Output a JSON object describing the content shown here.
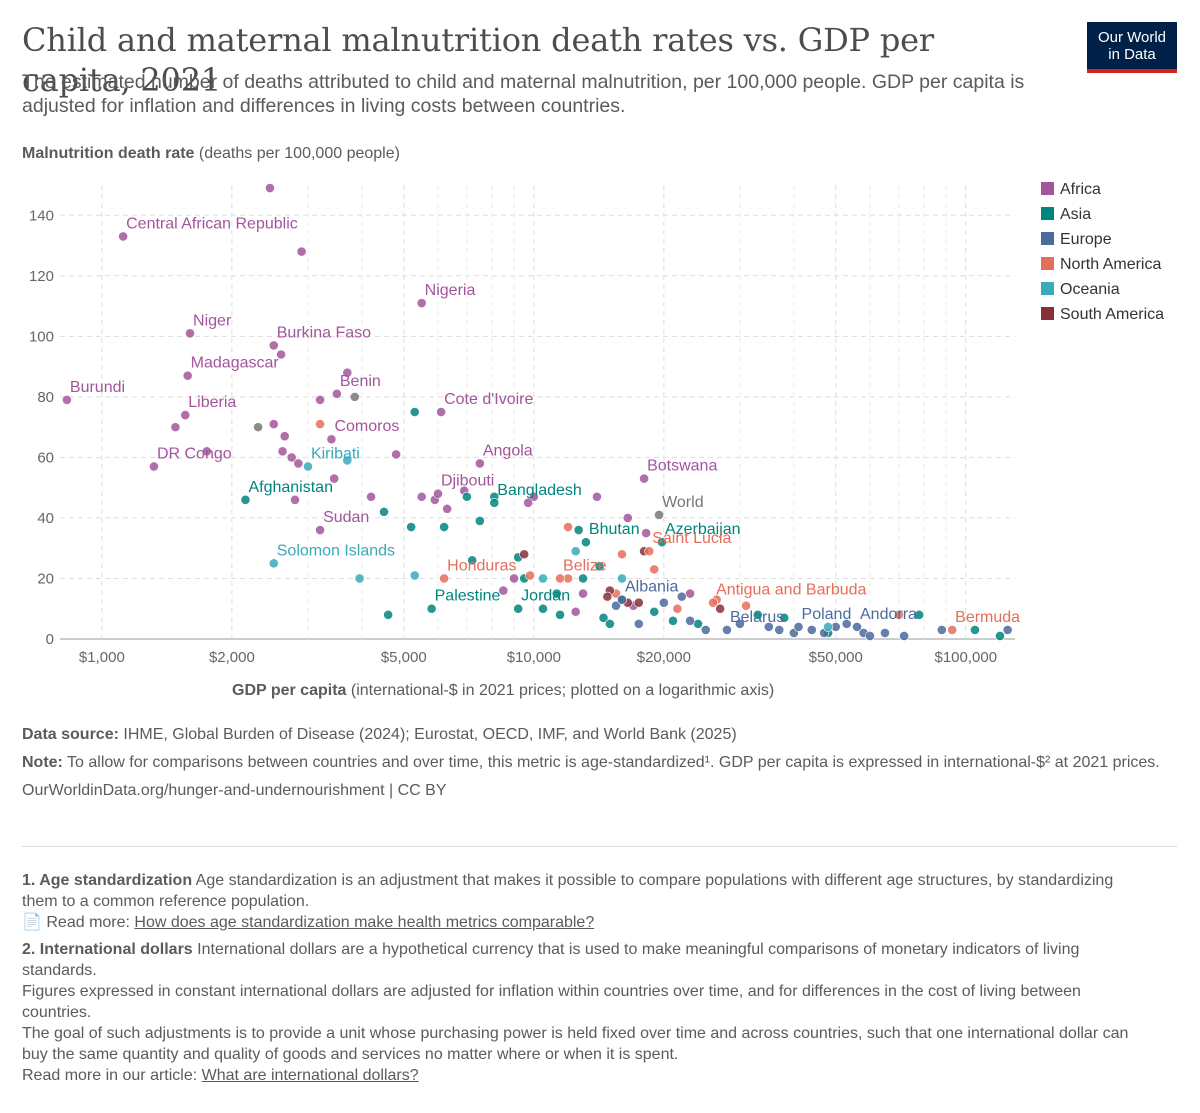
{
  "header": {
    "title": "Child and maternal malnutrition death rates vs. GDP per capita, 2021",
    "subtitle": "The estimated number of deaths attributed to child and maternal malnutrition, per 100,000 people. GDP per capita is adjusted for inflation and differences in living costs between countries.",
    "logo_line1": "Our World",
    "logo_line2": "in Data"
  },
  "colors": {
    "Africa": "#a2559c",
    "Asia": "#00847e",
    "Europe": "#4c6a9c",
    "North America": "#e56e5a",
    "Oceania": "#38aaba",
    "South America": "#883039",
    "World": "#777777"
  },
  "chart_data": {
    "type": "scatter",
    "title": "Child and maternal malnutrition death rates vs. GDP per capita, 2021",
    "ylabel_bold": "Malnutrition death rate",
    "ylabel_rest": " (deaths per 100,000 people)",
    "xlabel_bold": "GDP per capita",
    "xlabel_rest": " (international-$ in 2021 prices; plotted on a logarithmic axis)",
    "x_scale": "log",
    "xlim": [
      800,
      130000
    ],
    "ylim": [
      0,
      150
    ],
    "grid": true,
    "legend_position": "right",
    "x_ticks": [
      {
        "value": 1000,
        "label": "$1,000"
      },
      {
        "value": 2000,
        "label": "$2,000"
      },
      {
        "value": 5000,
        "label": "$5,000"
      },
      {
        "value": 10000,
        "label": "$10,000"
      },
      {
        "value": 20000,
        "label": "$20,000"
      },
      {
        "value": 50000,
        "label": "$50,000"
      },
      {
        "value": 100000,
        "label": "$100,000"
      }
    ],
    "x_minor_ticks": [
      3000,
      4000,
      6000,
      7000,
      8000,
      9000,
      30000,
      40000,
      60000,
      70000,
      80000,
      90000
    ],
    "y_ticks": [
      0,
      20,
      40,
      60,
      80,
      100,
      120,
      140
    ],
    "legend": [
      "Africa",
      "Asia",
      "Europe",
      "North America",
      "Oceania",
      "South America"
    ],
    "labeled_points": [
      {
        "name": "Central African Republic",
        "region": "Africa",
        "x": 1120,
        "y": 133
      },
      {
        "name": "Nigeria",
        "region": "Africa",
        "x": 5500,
        "y": 111
      },
      {
        "name": "Niger",
        "region": "Africa",
        "x": 1600,
        "y": 101
      },
      {
        "name": "Burkina Faso",
        "region": "Africa",
        "x": 2500,
        "y": 97
      },
      {
        "name": "Madagascar",
        "region": "Africa",
        "x": 1580,
        "y": 87
      },
      {
        "name": "Benin",
        "region": "Africa",
        "x": 3500,
        "y": 81
      },
      {
        "name": "Burundi",
        "region": "Africa",
        "x": 830,
        "y": 79
      },
      {
        "name": "Liberia",
        "region": "Africa",
        "x": 1560,
        "y": 74
      },
      {
        "name": "Cote d'Ivoire",
        "region": "Africa",
        "x": 6100,
        "y": 75
      },
      {
        "name": "Comoros",
        "region": "Africa",
        "x": 3400,
        "y": 66
      },
      {
        "name": "DR Congo",
        "region": "Africa",
        "x": 1320,
        "y": 57
      },
      {
        "name": "Kiribati",
        "region": "Oceania",
        "x": 3000,
        "y": 57
      },
      {
        "name": "Angola",
        "region": "Africa",
        "x": 7500,
        "y": 58
      },
      {
        "name": "Botswana",
        "region": "Africa",
        "x": 18000,
        "y": 53
      },
      {
        "name": "Afghanistan",
        "region": "Asia",
        "x": 2150,
        "y": 46
      },
      {
        "name": "Djibouti",
        "region": "Africa",
        "x": 6000,
        "y": 48
      },
      {
        "name": "Bangladesh",
        "region": "Asia",
        "x": 8100,
        "y": 45
      },
      {
        "name": "World",
        "region": "World",
        "x": 19500,
        "y": 41
      },
      {
        "name": "Sudan",
        "region": "Africa",
        "x": 3200,
        "y": 36
      },
      {
        "name": "Bhutan",
        "region": "Asia",
        "x": 13200,
        "y": 32
      },
      {
        "name": "Azerbaijan",
        "region": "Asia",
        "x": 19800,
        "y": 32
      },
      {
        "name": "Solomon Islands",
        "region": "Oceania",
        "x": 2500,
        "y": 25
      },
      {
        "name": "Saint Lucia",
        "region": "North America",
        "x": 18500,
        "y": 29
      },
      {
        "name": "Belize",
        "region": "North America",
        "x": 11500,
        "y": 20
      },
      {
        "name": "Honduras",
        "region": "North America",
        "x": 6200,
        "y": 20
      },
      {
        "name": "Antigua and Barbuda",
        "region": "North America",
        "x": 26000,
        "y": 12
      },
      {
        "name": "Albania",
        "region": "Europe",
        "x": 16000,
        "y": 13
      },
      {
        "name": "Palestine",
        "region": "Asia",
        "x": 5800,
        "y": 10
      },
      {
        "name": "Jordan",
        "region": "Asia",
        "x": 9200,
        "y": 10
      },
      {
        "name": "Poland",
        "region": "Europe",
        "x": 41000,
        "y": 4
      },
      {
        "name": "Belarus",
        "region": "Europe",
        "x": 28000,
        "y": 3
      },
      {
        "name": "Andorra",
        "region": "Europe",
        "x": 56000,
        "y": 4
      },
      {
        "name": "Bermuda",
        "region": "North America",
        "x": 93000,
        "y": 3
      }
    ],
    "other_points": [
      {
        "region": "Africa",
        "x": 2450,
        "y": 149
      },
      {
        "region": "Africa",
        "x": 2900,
        "y": 128
      },
      {
        "region": "Africa",
        "x": 2600,
        "y": 94
      },
      {
        "region": "Africa",
        "x": 3700,
        "y": 88
      },
      {
        "region": "Africa",
        "x": 3200,
        "y": 79
      },
      {
        "region": "Africa",
        "x": 1480,
        "y": 70
      },
      {
        "region": "Africa",
        "x": 2500,
        "y": 71
      },
      {
        "region": "Africa",
        "x": 2650,
        "y": 67
      },
      {
        "region": "Africa",
        "x": 1750,
        "y": 62
      },
      {
        "region": "Africa",
        "x": 2620,
        "y": 62
      },
      {
        "region": "Africa",
        "x": 2750,
        "y": 60
      },
      {
        "region": "Africa",
        "x": 2850,
        "y": 58
      },
      {
        "region": "Africa",
        "x": 4800,
        "y": 61
      },
      {
        "region": "Africa",
        "x": 3450,
        "y": 53
      },
      {
        "region": "Africa",
        "x": 2800,
        "y": 46
      },
      {
        "region": "Africa",
        "x": 4200,
        "y": 47
      },
      {
        "region": "Africa",
        "x": 5500,
        "y": 47
      },
      {
        "region": "Africa",
        "x": 5900,
        "y": 46
      },
      {
        "region": "Africa",
        "x": 6900,
        "y": 49
      },
      {
        "region": "Africa",
        "x": 10000,
        "y": 47
      },
      {
        "region": "Africa",
        "x": 14000,
        "y": 47
      },
      {
        "region": "Africa",
        "x": 6300,
        "y": 43
      },
      {
        "region": "Africa",
        "x": 9700,
        "y": 45
      },
      {
        "region": "Africa",
        "x": 16500,
        "y": 40
      },
      {
        "region": "Africa",
        "x": 18200,
        "y": 35
      },
      {
        "region": "Africa",
        "x": 9000,
        "y": 20
      },
      {
        "region": "Africa",
        "x": 13000,
        "y": 15
      },
      {
        "region": "Africa",
        "x": 12500,
        "y": 9
      },
      {
        "region": "Africa",
        "x": 17000,
        "y": 11
      },
      {
        "region": "Africa",
        "x": 23000,
        "y": 15
      },
      {
        "region": "Africa",
        "x": 8500,
        "y": 16
      },
      {
        "region": "Asia",
        "x": 5300,
        "y": 75
      },
      {
        "region": "Asia",
        "x": 4500,
        "y": 42
      },
      {
        "region": "Asia",
        "x": 5200,
        "y": 37
      },
      {
        "region": "Asia",
        "x": 6200,
        "y": 37
      },
      {
        "region": "Asia",
        "x": 7500,
        "y": 39
      },
      {
        "region": "Asia",
        "x": 7000,
        "y": 47
      },
      {
        "region": "Asia",
        "x": 8100,
        "y": 47
      },
      {
        "region": "Asia",
        "x": 12700,
        "y": 36
      },
      {
        "region": "Asia",
        "x": 9200,
        "y": 27
      },
      {
        "region": "Asia",
        "x": 14200,
        "y": 24
      },
      {
        "region": "Asia",
        "x": 13000,
        "y": 20
      },
      {
        "region": "Asia",
        "x": 9500,
        "y": 20
      },
      {
        "region": "Asia",
        "x": 11300,
        "y": 15
      },
      {
        "region": "Asia",
        "x": 10500,
        "y": 10
      },
      {
        "region": "Asia",
        "x": 11500,
        "y": 8
      },
      {
        "region": "Asia",
        "x": 14500,
        "y": 7
      },
      {
        "region": "Asia",
        "x": 15000,
        "y": 5
      },
      {
        "region": "Asia",
        "x": 16000,
        "y": 13
      },
      {
        "region": "Asia",
        "x": 19000,
        "y": 9
      },
      {
        "region": "Asia",
        "x": 21000,
        "y": 6
      },
      {
        "region": "Asia",
        "x": 24000,
        "y": 5
      },
      {
        "region": "Asia",
        "x": 33000,
        "y": 8
      },
      {
        "region": "Asia",
        "x": 38000,
        "y": 7
      },
      {
        "region": "Asia",
        "x": 48000,
        "y": 2
      },
      {
        "region": "Asia",
        "x": 78000,
        "y": 8
      },
      {
        "region": "Asia",
        "x": 105000,
        "y": 3
      },
      {
        "region": "Asia",
        "x": 120000,
        "y": 1
      },
      {
        "region": "Asia",
        "x": 4600,
        "y": 8
      },
      {
        "region": "Asia",
        "x": 7200,
        "y": 26
      },
      {
        "region": "Europe",
        "x": 15500,
        "y": 11
      },
      {
        "region": "Europe",
        "x": 17500,
        "y": 5
      },
      {
        "region": "Europe",
        "x": 20000,
        "y": 12
      },
      {
        "region": "Europe",
        "x": 22000,
        "y": 14
      },
      {
        "region": "Europe",
        "x": 23000,
        "y": 6
      },
      {
        "region": "Europe",
        "x": 25000,
        "y": 3
      },
      {
        "region": "Europe",
        "x": 30000,
        "y": 5
      },
      {
        "region": "Europe",
        "x": 35000,
        "y": 4
      },
      {
        "region": "Europe",
        "x": 37000,
        "y": 3
      },
      {
        "region": "Europe",
        "x": 40000,
        "y": 2
      },
      {
        "region": "Europe",
        "x": 44000,
        "y": 3
      },
      {
        "region": "Europe",
        "x": 47000,
        "y": 2
      },
      {
        "region": "Europe",
        "x": 50000,
        "y": 4
      },
      {
        "region": "Europe",
        "x": 53000,
        "y": 5
      },
      {
        "region": "Europe",
        "x": 58000,
        "y": 2
      },
      {
        "region": "Europe",
        "x": 60000,
        "y": 1
      },
      {
        "region": "Europe",
        "x": 65000,
        "y": 2
      },
      {
        "region": "Europe",
        "x": 72000,
        "y": 1
      },
      {
        "region": "Europe",
        "x": 88000,
        "y": 3
      },
      {
        "region": "Europe",
        "x": 125000,
        "y": 3
      },
      {
        "region": "North America",
        "x": 3200,
        "y": 71
      },
      {
        "region": "North America",
        "x": 12000,
        "y": 37
      },
      {
        "region": "North America",
        "x": 16000,
        "y": 28
      },
      {
        "region": "North America",
        "x": 19000,
        "y": 23
      },
      {
        "region": "North America",
        "x": 12000,
        "y": 20
      },
      {
        "region": "North America",
        "x": 9800,
        "y": 21
      },
      {
        "region": "North America",
        "x": 15500,
        "y": 15
      },
      {
        "region": "North America",
        "x": 21500,
        "y": 10
      },
      {
        "region": "North America",
        "x": 26500,
        "y": 13
      },
      {
        "region": "North America",
        "x": 31000,
        "y": 11
      },
      {
        "region": "North America",
        "x": 70000,
        "y": 8
      },
      {
        "region": "Oceania",
        "x": 3700,
        "y": 59
      },
      {
        "region": "Oceania",
        "x": 3950,
        "y": 20
      },
      {
        "region": "Oceania",
        "x": 5300,
        "y": 21
      },
      {
        "region": "Oceania",
        "x": 10500,
        "y": 20
      },
      {
        "region": "Oceania",
        "x": 12500,
        "y": 29
      },
      {
        "region": "Oceania",
        "x": 16000,
        "y": 20
      },
      {
        "region": "Oceania",
        "x": 48000,
        "y": 4
      },
      {
        "region": "South America",
        "x": 9500,
        "y": 28
      },
      {
        "region": "South America",
        "x": 18000,
        "y": 29
      },
      {
        "region": "South America",
        "x": 15000,
        "y": 16
      },
      {
        "region": "South America",
        "x": 17500,
        "y": 12
      },
      {
        "region": "South America",
        "x": 27000,
        "y": 10
      },
      {
        "region": "South America",
        "x": 14800,
        "y": 14
      },
      {
        "region": "South America",
        "x": 16500,
        "y": 12
      },
      {
        "region": "World",
        "x": 2300,
        "y": 70
      },
      {
        "region": "World",
        "x": 3850,
        "y": 80
      }
    ]
  },
  "footer": {
    "source_label": "Data source:",
    "source_text": " IHME, Global Burden of Disease (2024); Eurostat, OECD, IMF, and World Bank (2025)",
    "note_label": "Note:",
    "note_text": " To allow for comparisons between countries and over time, this metric is age-standardized¹. GDP per capita is expressed in international-$² at 2021 prices.",
    "url": "OurWorldinData.org/hunger-and-undernourishment | CC BY",
    "fn1_label": "1. Age standardization",
    "fn1_text": " Age standardization is an adjustment that makes it possible to compare populations with different age structures, by standardizing them to a common reference population.",
    "fn1_read_prefix": "📄 Read more: ",
    "fn1_link": "How does age standardization make health metrics comparable?",
    "fn2_label": "2. International dollars",
    "fn2_text": " International dollars are a hypothetical currency that is used to make meaningful comparisons of monetary indicators of living standards.",
    "fn2_p2": "Figures expressed in constant international dollars are adjusted for inflation within countries over time, and for differences in the cost of living between countries.",
    "fn2_p3": "The goal of such adjustments is to provide a unit whose purchasing power is held fixed over time and across countries, such that one international dollar can buy the same quantity and quality of goods and services no matter where or when it is spent.",
    "fn2_read_prefix": "Read more in our article: ",
    "fn2_link": "What are international dollars?"
  }
}
